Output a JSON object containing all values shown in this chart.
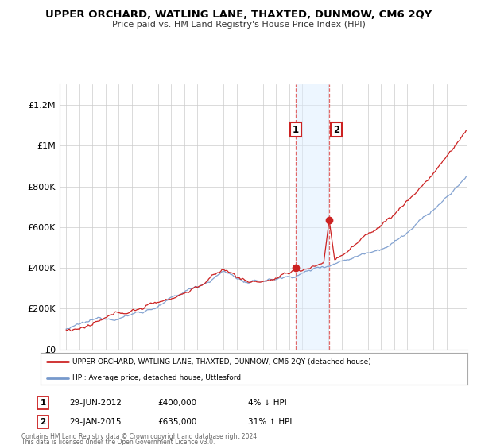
{
  "title": "UPPER ORCHARD, WATLING LANE, THAXTED, DUNMOW, CM6 2QY",
  "subtitle": "Price paid vs. HM Land Registry's House Price Index (HPI)",
  "yticks": [
    0,
    200000,
    400000,
    600000,
    800000,
    1000000,
    1200000
  ],
  "ytick_labels": [
    "£0",
    "£200K",
    "£400K",
    "£600K",
    "£800K",
    "£1M",
    "£1.2M"
  ],
  "ylim": [
    0,
    1300000
  ],
  "hpi_color": "#7799cc",
  "price_color": "#cc2222",
  "sale1_year": 2012.49,
  "sale1_price": 400000,
  "sale2_year": 2015.08,
  "sale2_price": 635000,
  "shade_color": "#ddeeff",
  "vline_color": "#dd4444",
  "legend_price_label": "UPPER ORCHARD, WATLING LANE, THAXTED, DUNMOW, CM6 2QY (detached house)",
  "legend_hpi_label": "HPI: Average price, detached house, Uttlesford",
  "annot1_date": "29-JUN-2012",
  "annot1_price": "£400,000",
  "annot1_hpi": "4% ↓ HPI",
  "annot2_date": "29-JAN-2015",
  "annot2_price": "£635,000",
  "annot2_hpi": "31% ↑ HPI",
  "footnote1": "Contains HM Land Registry data © Crown copyright and database right 2024.",
  "footnote2": "This data is licensed under the Open Government Licence v3.0.",
  "background_color": "#ffffff",
  "grid_color": "#cccccc"
}
